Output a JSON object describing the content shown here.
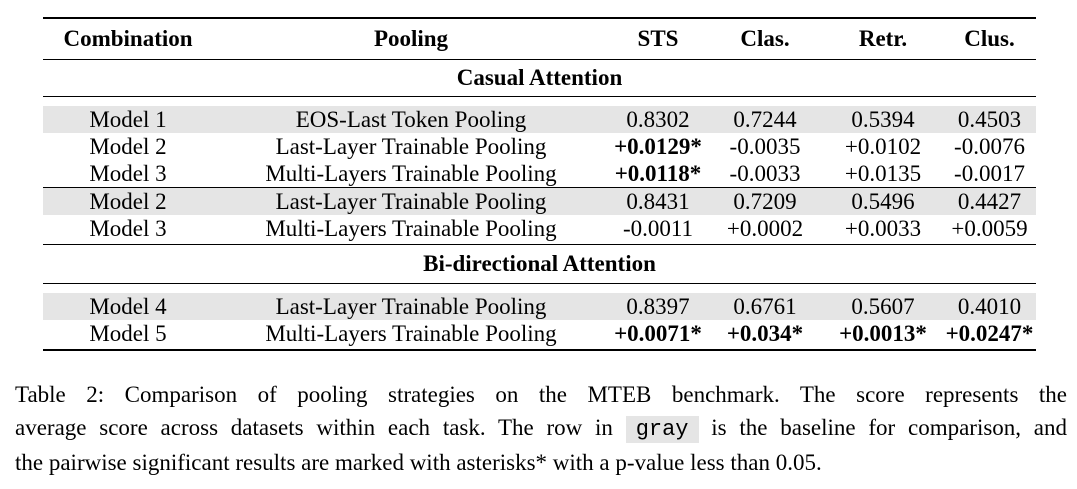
{
  "table": {
    "headers": [
      "Combination",
      "Pooling",
      "STS",
      "Clas.",
      "Retr.",
      "Clus."
    ],
    "sections": {
      "casual": "Casual Attention",
      "bidirectional": "Bi-directional Attention"
    },
    "rows": [
      {
        "combination": "Model 1",
        "pooling": "EOS-Last Token Pooling",
        "sts": "0.8302",
        "clas": "0.7244",
        "retr": "0.5394",
        "clus": "0.4503",
        "gray": true
      },
      {
        "combination": "Model 2",
        "pooling": "Last-Layer Trainable Pooling",
        "sts": "+0.0129*",
        "clas": "-0.0035",
        "retr": "+0.0102",
        "clus": "-0.0076"
      },
      {
        "combination": "Model 3",
        "pooling": "Multi-Layers Trainable Pooling",
        "sts": "+0.0118*",
        "clas": "-0.0033",
        "retr": "+0.0135",
        "clus": "-0.0017"
      },
      {
        "combination": "Model 2",
        "pooling": "Last-Layer Trainable Pooling",
        "sts": "0.8431",
        "clas": "0.7209",
        "retr": "0.5496",
        "clus": "0.4427",
        "gray": true
      },
      {
        "combination": "Model 3",
        "pooling": "Multi-Layers Trainable Pooling",
        "sts": "-0.0011",
        "clas": "+0.0002",
        "retr": "+0.0033",
        "clus": "+0.0059"
      },
      {
        "combination": "Model 4",
        "pooling": "Last-Layer Trainable Pooling",
        "sts": "0.8397",
        "clas": "0.6761",
        "retr": "0.5607",
        "clus": "0.4010",
        "gray": true
      },
      {
        "combination": "Model 5",
        "pooling": "Multi-Layers Trainable Pooling",
        "sts": "+0.0071*",
        "clas": "+0.034*",
        "retr": "+0.0013*",
        "clus": "+0.0247*"
      }
    ]
  },
  "caption": {
    "line1": "Table 2: Comparison of pooling strategies on the MTEB benchmark. The score represents the",
    "line2_before": "average score across datasets within each task. The row in",
    "gray_word": "gray",
    "line2_after": "is the baseline for comparison, and",
    "line3": "the pairwise significant results are marked with asterisks* with a p-value less than 0.05."
  }
}
